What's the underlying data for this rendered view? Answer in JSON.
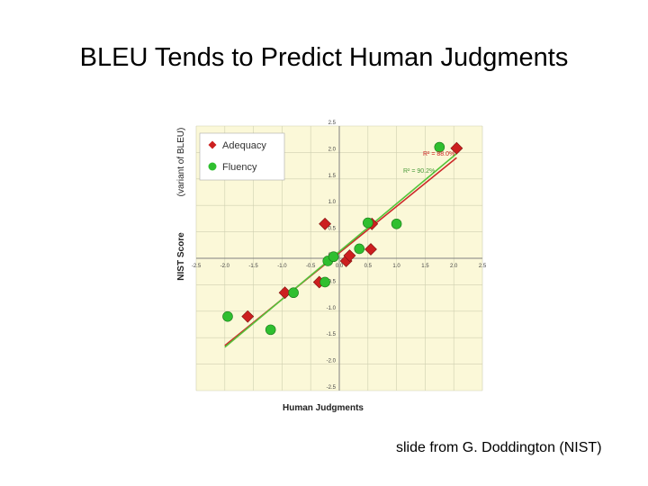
{
  "slide": {
    "title": "BLEU Tends to Predict Human Judgments",
    "footer": "slide from G. Doddington (NIST)"
  },
  "colors": {
    "plot_bg": "#fbf8d8",
    "grid": "#cfcfb0",
    "axis": "#808080",
    "adequacy": "#cc1f1f",
    "fluency": "#2fbf2f",
    "adequacy_fit": "#cc2a2a",
    "fluency_fit": "#55c43a"
  },
  "chart_data": {
    "type": "scatter",
    "title": "",
    "xlabel": "Human Judgments",
    "ylabel": "NIST Score",
    "ylabel_note": "(variant of BLEU)",
    "xlim": [
      -2.5,
      2.5
    ],
    "ylim": [
      -2.5,
      2.5
    ],
    "x_ticks": [
      "-2.5",
      "-2.0",
      "-1.5",
      "-1.0",
      "-0.5",
      "0.0",
      "0.5",
      "1.0",
      "1.5",
      "2.0",
      "2.5"
    ],
    "y_ticks": [
      "2.5",
      "2.0",
      "1.5",
      "1.0",
      "0.5",
      "0.0",
      "-0.5",
      "-1.0",
      "-1.5",
      "-2.0",
      "-2.5"
    ],
    "grid": true,
    "legend_position": "top-left",
    "series": [
      {
        "name": "Adequacy",
        "marker": "diamond",
        "points": [
          {
            "x": -1.6,
            "y": -1.1
          },
          {
            "x": -0.95,
            "y": -0.65
          },
          {
            "x": -0.35,
            "y": -0.45
          },
          {
            "x": -0.25,
            "y": 0.65
          },
          {
            "x": 0.12,
            "y": -0.05
          },
          {
            "x": 0.18,
            "y": 0.05
          },
          {
            "x": 0.57,
            "y": 0.65
          },
          {
            "x": 0.55,
            "y": 0.17
          },
          {
            "x": 2.05,
            "y": 2.08
          }
        ],
        "fit_label": "R² = 88.0%",
        "fit": {
          "x": [
            -2.0,
            2.05
          ],
          "y": [
            -1.65,
            1.9
          ]
        }
      },
      {
        "name": "Fluency",
        "marker": "circle",
        "points": [
          {
            "x": -1.95,
            "y": -1.1
          },
          {
            "x": -1.2,
            "y": -1.35
          },
          {
            "x": -0.8,
            "y": -0.65
          },
          {
            "x": -0.25,
            "y": -0.45
          },
          {
            "x": -0.2,
            "y": -0.05
          },
          {
            "x": -0.1,
            "y": 0.03
          },
          {
            "x": 0.35,
            "y": 0.18
          },
          {
            "x": 0.5,
            "y": 0.67
          },
          {
            "x": 1.0,
            "y": 0.65
          },
          {
            "x": 1.75,
            "y": 2.1
          }
        ],
        "fit_label": "R² = 90.2%",
        "fit": {
          "x": [
            -2.0,
            2.05
          ],
          "y": [
            -1.68,
            1.98
          ]
        }
      }
    ]
  }
}
